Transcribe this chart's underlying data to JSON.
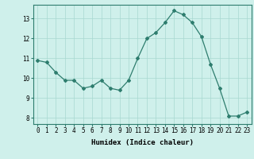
{
  "x": [
    0,
    1,
    2,
    3,
    4,
    5,
    6,
    7,
    8,
    9,
    10,
    11,
    12,
    13,
    14,
    15,
    16,
    17,
    18,
    19,
    20,
    21,
    22,
    23
  ],
  "y": [
    10.9,
    10.8,
    10.3,
    9.9,
    9.9,
    9.5,
    9.6,
    9.9,
    9.5,
    9.4,
    9.9,
    11.0,
    12.0,
    12.3,
    12.8,
    13.4,
    13.2,
    12.8,
    12.1,
    10.7,
    9.5,
    8.1,
    8.1,
    8.3
  ],
  "xlabel": "Humidex (Indice chaleur)",
  "xlim": [
    -0.5,
    23.5
  ],
  "ylim": [
    7.7,
    13.7
  ],
  "yticks": [
    8,
    9,
    10,
    11,
    12,
    13
  ],
  "xticks": [
    0,
    1,
    2,
    3,
    4,
    5,
    6,
    7,
    8,
    9,
    10,
    11,
    12,
    13,
    14,
    15,
    16,
    17,
    18,
    19,
    20,
    21,
    22,
    23
  ],
  "line_color": "#2e7d6e",
  "marker": "D",
  "marker_size": 2.0,
  "bg_color": "#cff0eb",
  "grid_color": "#a8d8d0",
  "tick_fontsize": 5.5,
  "label_fontsize": 6.5
}
